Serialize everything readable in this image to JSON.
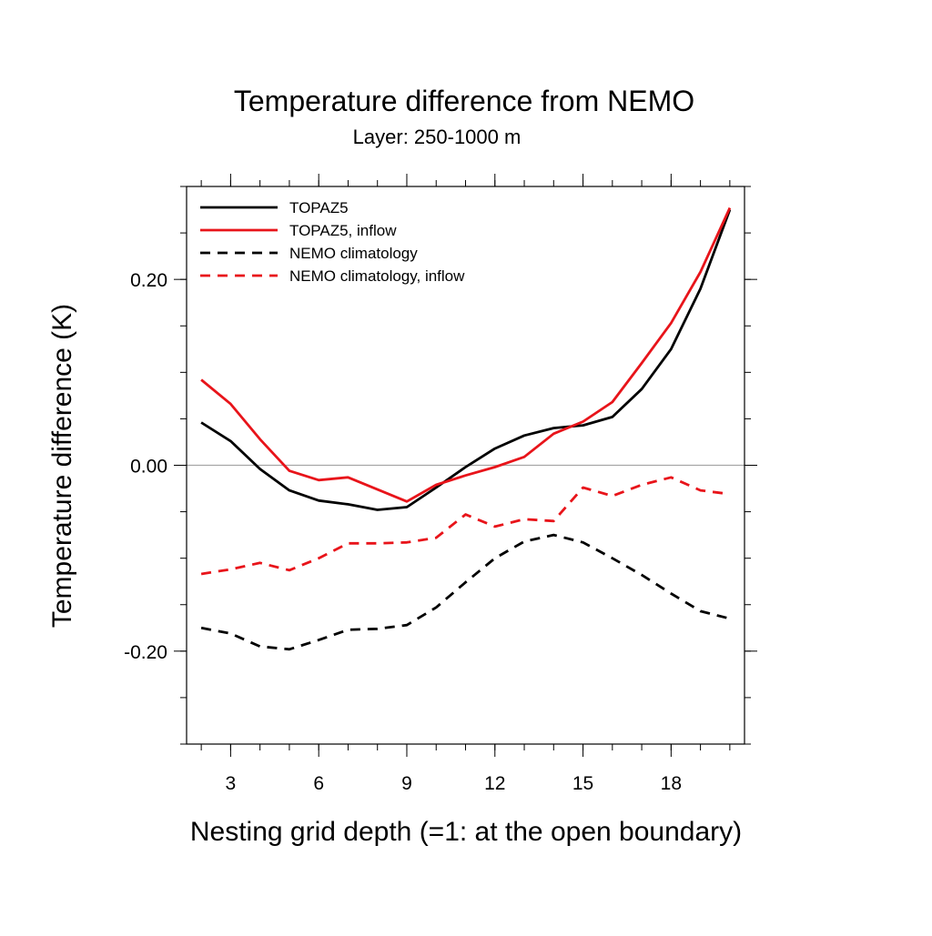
{
  "chart_data": {
    "type": "line",
    "title": "Temperature difference from NEMO",
    "subtitle": "Layer: 250-1000 m",
    "xlabel": "Nesting grid depth (=1: at the open boundary)",
    "ylabel": "Temperature difference (K)",
    "xlim": [
      1.5,
      20.5
    ],
    "ylim": [
      -0.3,
      0.3
    ],
    "x_ticks": [
      3,
      6,
      9,
      12,
      15,
      18
    ],
    "x_tick_labels": [
      "3",
      "6",
      "9",
      "12",
      "15",
      "18"
    ],
    "y_ticks": [
      -0.2,
      0.0,
      0.2
    ],
    "y_tick_labels": [
      "-0.20",
      "0.00",
      "0.20"
    ],
    "zero_line": true,
    "grid": false,
    "legend_position": "top-left",
    "x": [
      2,
      3,
      4,
      5,
      6,
      7,
      8,
      9,
      10,
      11,
      12,
      13,
      14,
      15,
      16,
      17,
      18,
      19,
      20
    ],
    "series": [
      {
        "name": "TOPAZ5",
        "color": "#000000",
        "dash": "solid",
        "values": [
          0.046,
          0.026,
          -0.004,
          -0.027,
          -0.038,
          -0.042,
          -0.048,
          -0.045,
          -0.024,
          -0.002,
          0.018,
          0.032,
          0.04,
          0.043,
          0.052,
          0.082,
          0.125,
          0.19,
          0.275
        ]
      },
      {
        "name": "TOPAZ5, inflow",
        "color": "#e8141a",
        "dash": "solid",
        "values": [
          0.092,
          0.066,
          0.028,
          -0.006,
          -0.016,
          -0.013,
          -0.026,
          -0.039,
          -0.021,
          -0.011,
          -0.002,
          0.009,
          0.034,
          0.047,
          0.068,
          0.11,
          0.153,
          0.208,
          0.277
        ]
      },
      {
        "name": "NEMO climatology",
        "color": "#000000",
        "dash": "dashed",
        "values": [
          -0.175,
          -0.181,
          -0.195,
          -0.198,
          -0.188,
          -0.177,
          -0.176,
          -0.172,
          -0.153,
          -0.126,
          -0.1,
          -0.082,
          -0.075,
          -0.083,
          -0.1,
          -0.118,
          -0.138,
          -0.157,
          -0.165
        ]
      },
      {
        "name": "NEMO climatology, inflow",
        "color": "#e8141a",
        "dash": "dashed",
        "values": [
          -0.117,
          -0.112,
          -0.105,
          -0.113,
          -0.1,
          -0.084,
          -0.084,
          -0.083,
          -0.078,
          -0.053,
          -0.066,
          -0.058,
          -0.06,
          -0.024,
          -0.033,
          -0.021,
          -0.013,
          -0.027,
          -0.031
        ]
      }
    ]
  }
}
